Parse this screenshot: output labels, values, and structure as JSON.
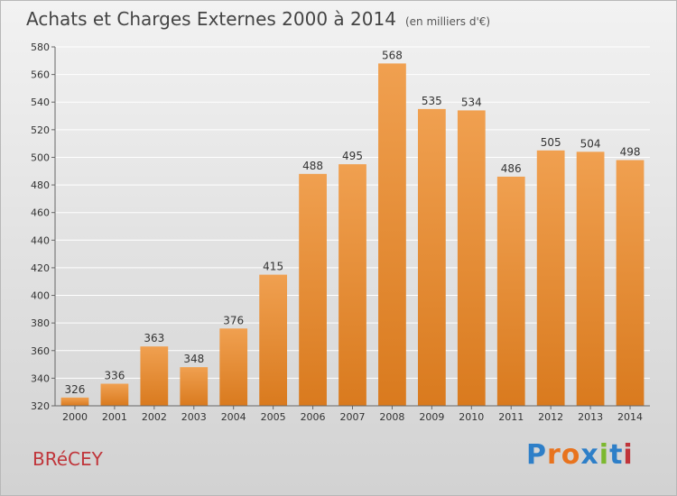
{
  "chart_data": {
    "type": "bar",
    "title": "Achats et Charges Externes 2000 à 2014",
    "subtitle": "(en milliers d'€)",
    "categories": [
      "2000",
      "2001",
      "2002",
      "2003",
      "2004",
      "2005",
      "2006",
      "2007",
      "2008",
      "2009",
      "2010",
      "2011",
      "2012",
      "2013",
      "2014"
    ],
    "values": [
      326,
      336,
      363,
      348,
      376,
      415,
      488,
      495,
      568,
      535,
      534,
      486,
      505,
      504,
      498
    ],
    "ylim": [
      320,
      580
    ],
    "yticks": [
      320,
      340,
      360,
      380,
      400,
      420,
      440,
      460,
      480,
      500,
      520,
      540,
      560,
      580
    ],
    "grid": true,
    "bar_color": "#f0a050",
    "bar_color_dark": "#d97a1e"
  },
  "footer": {
    "place": "BRéCEY",
    "logo": "Proxiti",
    "logo_colors": [
      "#2e7fc8",
      "#e8731e",
      "#e8731e",
      "#2e7fc8",
      "#7cb82f",
      "#2e7fc8",
      "#c0353a"
    ]
  }
}
